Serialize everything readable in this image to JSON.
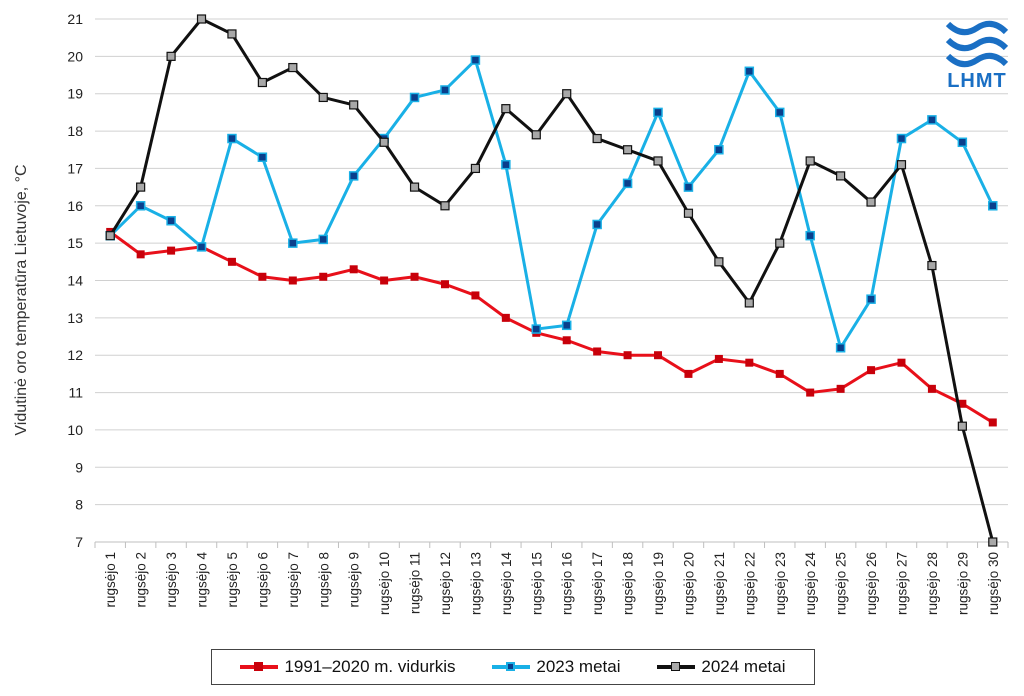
{
  "logo": {
    "text": "LHMT",
    "color": "#1a6fc4"
  },
  "chart_data": {
    "type": "line",
    "title": "",
    "xlabel": "",
    "ylabel": "Vidutinė oro temperatūra Lietuvoje, °C",
    "ylim": [
      7,
      21
    ],
    "yticks": [
      7,
      8,
      9,
      10,
      11,
      12,
      13,
      14,
      15,
      16,
      17,
      18,
      19,
      20,
      21
    ],
    "grid": true,
    "legend_position": "bottom",
    "categories": [
      "rugsėjo 1",
      "rugsėjo 2",
      "rugsėjo 3",
      "rugsėjo 4",
      "rugsėjo 5",
      "rugsėjo 6",
      "rugsėjo 7",
      "rugsėjo 8",
      "rugsėjo 9",
      "rugsėjo 10",
      "rugsėjo 11",
      "rugsėjo 12",
      "rugsėjo 13",
      "rugsėjo 14",
      "rugsėjo 15",
      "rugsėjo 16",
      "rugsėjo 17",
      "rugsėjo 18",
      "rugsėjo 19",
      "rugsėjo 20",
      "rugsėjo 21",
      "rugsėjo 22",
      "rugsėjo 23",
      "rugsėjo 24",
      "rugsėjo 25",
      "rugsėjo 26",
      "rugsėjo 27",
      "rugsėjo 28",
      "rugsėjo 29",
      "rugsėjo 30"
    ],
    "series": [
      {
        "name": "1991–2020 m. vidurkis",
        "color": "#e8101a",
        "marker_color": "#c8000a",
        "values": [
          15.3,
          14.7,
          14.8,
          14.9,
          14.5,
          14.1,
          14.0,
          14.1,
          14.3,
          14.0,
          14.1,
          13.9,
          13.6,
          13.0,
          12.6,
          12.4,
          12.1,
          12.0,
          12.0,
          11.5,
          11.9,
          11.8,
          11.5,
          11.0,
          11.1,
          11.6,
          11.8,
          11.1,
          10.7,
          10.2
        ]
      },
      {
        "name": "2023 metai",
        "color": "#19b0e6",
        "marker_color": "#0a3f8c",
        "values": [
          15.2,
          16.0,
          15.6,
          14.9,
          17.8,
          17.3,
          15.0,
          15.1,
          16.8,
          17.8,
          18.9,
          19.1,
          19.9,
          17.1,
          12.7,
          12.8,
          15.5,
          16.6,
          18.5,
          16.5,
          17.5,
          19.6,
          18.5,
          15.2,
          12.2,
          13.5,
          17.8,
          18.3,
          17.7,
          16.0
        ]
      },
      {
        "name": "2024 metai",
        "color": "#111111",
        "marker_color": "#a8a8a8",
        "values": [
          15.2,
          16.5,
          20.0,
          21.0,
          20.6,
          19.3,
          19.7,
          18.9,
          18.7,
          17.7,
          16.5,
          16.0,
          17.0,
          18.6,
          17.9,
          19.0,
          17.8,
          17.5,
          17.2,
          15.8,
          14.5,
          13.4,
          15.0,
          17.2,
          16.8,
          16.1,
          17.1,
          14.4,
          10.1,
          7.0
        ]
      }
    ]
  }
}
